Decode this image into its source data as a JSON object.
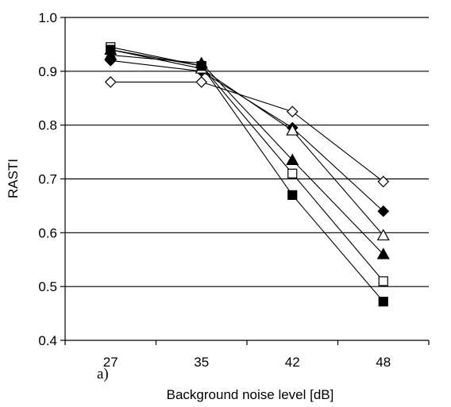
{
  "chart_data": {
    "type": "line",
    "title": "",
    "panel_label": "a)",
    "xlabel": "Background noise level [dB]",
    "ylabel": "RASTI",
    "categories": [
      "27",
      "35",
      "42",
      "48"
    ],
    "ylim": [
      0.4,
      1.0
    ],
    "yticks": [
      "0.4",
      "0.5",
      "0.6",
      "0.7",
      "0.8",
      "0.9",
      "1.0"
    ],
    "grid": "horizontal",
    "series": [
      {
        "marker": "diamond-open",
        "values": [
          0.88,
          0.88,
          0.825,
          0.695
        ]
      },
      {
        "marker": "diamond-filled",
        "values": [
          0.92,
          0.9,
          0.795,
          0.64
        ]
      },
      {
        "marker": "triangle-open",
        "values": [
          0.94,
          0.905,
          0.79,
          0.595
        ]
      },
      {
        "marker": "triangle-filled",
        "values": [
          0.93,
          0.915,
          0.735,
          0.56
        ]
      },
      {
        "marker": "square-open",
        "values": [
          0.945,
          0.91,
          0.71,
          0.51
        ]
      },
      {
        "marker": "square-filled",
        "values": [
          0.94,
          0.91,
          0.67,
          0.472
        ]
      }
    ]
  }
}
